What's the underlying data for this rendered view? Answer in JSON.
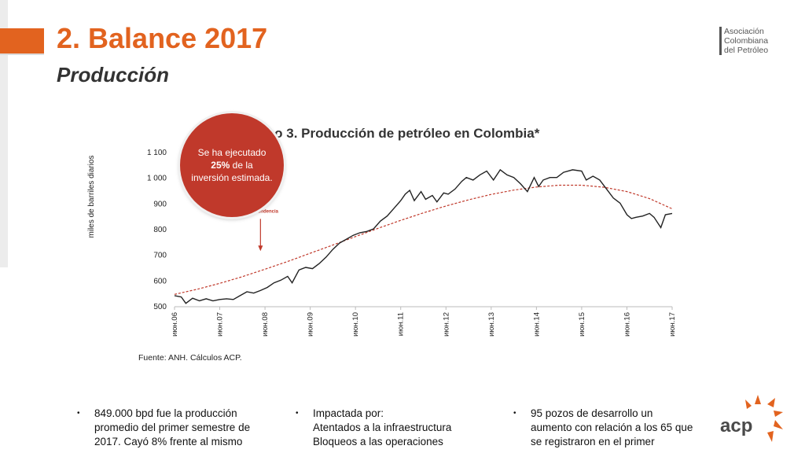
{
  "header": {
    "title": "2. Balance 2017",
    "subtitle": "Producción",
    "logo_lines": [
      "Asociación",
      "Colombiana",
      "del Petróleo"
    ]
  },
  "colors": {
    "accent": "#e2631f",
    "bubble": "#c0392b",
    "trend": "#c0392b",
    "line": "#222222"
  },
  "chart_data": {
    "type": "line",
    "title": "Gráfico 3. Producción de petróleo en Colombia*",
    "ylabel": "miles de barriles diarios",
    "xlabel": "",
    "ylim": [
      500,
      1100
    ],
    "yticks": [
      500,
      600,
      700,
      800,
      900,
      1000,
      1100
    ],
    "ytick_labels": [
      "500",
      "600",
      "700",
      "800",
      "900",
      "1 000",
      "1 100"
    ],
    "xlim": [
      0,
      11
    ],
    "xticks": [
      "июн.06",
      "июн.07",
      "июн.08",
      "июн.09",
      "июн.10",
      "июн.11",
      "июн.12",
      "июн.13",
      "июн.14",
      "июн.15",
      "июн.16",
      "июн.17"
    ],
    "series": [
      {
        "style": "solid",
        "x": [
          0,
          0.15,
          0.25,
          0.4,
          0.55,
          0.7,
          0.85,
          1.0,
          1.15,
          1.3,
          1.45,
          1.6,
          1.75,
          1.9,
          2.05,
          2.2,
          2.35,
          2.5,
          2.6,
          2.75,
          2.9,
          3.05,
          3.2,
          3.35,
          3.5,
          3.65,
          3.8,
          3.95,
          4.1,
          4.25,
          4.4,
          4.55,
          4.7,
          4.85,
          5.0,
          5.1,
          5.2,
          5.3,
          5.45,
          5.55,
          5.7,
          5.8,
          5.95,
          6.05,
          6.2,
          6.35,
          6.45,
          6.6,
          6.75,
          6.9,
          7.05,
          7.2,
          7.35,
          7.5,
          7.65,
          7.8,
          7.95,
          8.05,
          8.15,
          8.3,
          8.45,
          8.6,
          8.8,
          9.0,
          9.1,
          9.25,
          9.4,
          9.55,
          9.7,
          9.85,
          10.0,
          10.1,
          10.2,
          10.35,
          10.5,
          10.6,
          10.75,
          10.85,
          11.0
        ],
        "y": [
          540,
          535,
          510,
          530,
          520,
          528,
          520,
          525,
          528,
          525,
          540,
          555,
          550,
          560,
          572,
          590,
          600,
          615,
          590,
          640,
          650,
          645,
          665,
          690,
          720,
          745,
          760,
          775,
          785,
          790,
          800,
          830,
          850,
          880,
          910,
          935,
          950,
          910,
          945,
          915,
          930,
          905,
          940,
          935,
          955,
          985,
          1000,
          990,
          1010,
          1025,
          990,
          1030,
          1010,
          1000,
          975,
          945,
          1000,
          965,
          990,
          1000,
          1000,
          1020,
          1030,
          1025,
          990,
          1005,
          990,
          955,
          920,
          900,
          855,
          840,
          845,
          850,
          860,
          845,
          805,
          855,
          860
        ]
      },
      {
        "name": "Tendencia",
        "style": "dashed",
        "x": [
          0,
          0.5,
          1,
          1.5,
          2,
          2.5,
          3,
          3.5,
          4,
          4.5,
          5,
          5.5,
          6,
          6.5,
          7,
          7.5,
          8,
          8.5,
          9,
          9.5,
          10,
          10.5,
          11
        ],
        "y": [
          545,
          565,
          588,
          614,
          643,
          673,
          705,
          737,
          770,
          802,
          833,
          862,
          889,
          913,
          934,
          951,
          963,
          970,
          970,
          962,
          945,
          918,
          878
        ]
      }
    ],
    "annotations": [
      {
        "text": "Tendencia",
        "x": 1.9,
        "y": 845
      }
    ],
    "legend": "none",
    "grid": false
  },
  "callout": {
    "prefix": "Se ha ejecutado",
    "highlight": "25%",
    "suffix": "de la inversión estimada."
  },
  "source": "Fuente: ANH. Cálculos ACP.",
  "bullets": [
    {
      "lines": [
        "849.000 bpd fue la producción",
        "promedio del primer semestre de",
        "2017. Cayó 8% frente al mismo"
      ]
    },
    {
      "lines": [
        "Impactada por:",
        "Atentados a la infraestructura",
        "Bloqueos a las operaciones"
      ]
    },
    {
      "lines": [
        "95 pozos de desarrollo un",
        "aumento con relación a los 65 que",
        "se registraron en el primer"
      ]
    }
  ],
  "footer_logo": "acp"
}
